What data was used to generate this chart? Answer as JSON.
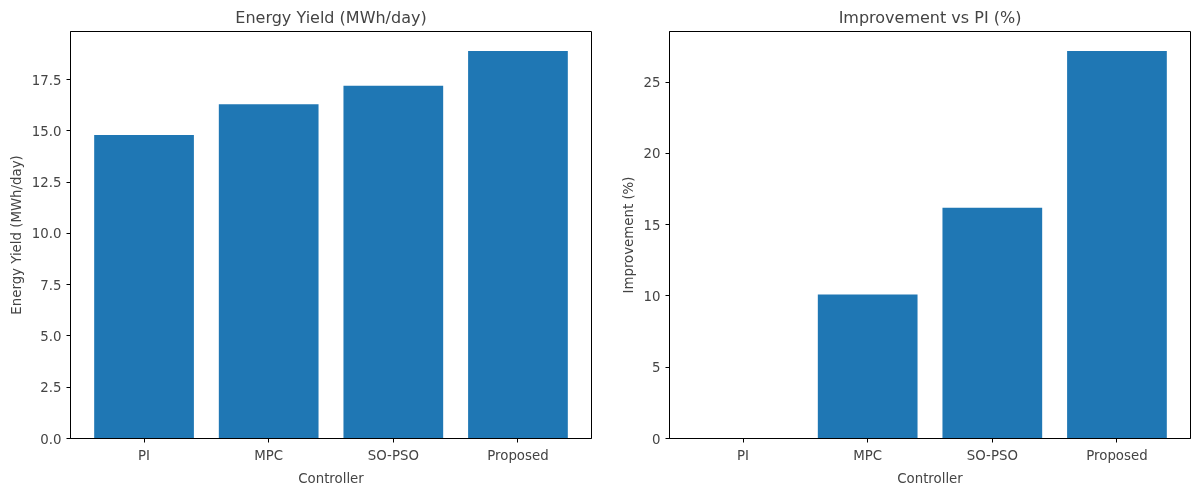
{
  "chart_data": [
    {
      "type": "bar",
      "title": "Energy Yield (MWh/day)",
      "xlabel": "Controller",
      "ylabel": "Energy Yield (MWh/day)",
      "categories": [
        "PI",
        "MPC",
        "SO-PSO",
        "Proposed"
      ],
      "values": [
        14.8,
        16.3,
        17.2,
        18.9
      ],
      "color": "#1f77b4",
      "ylim": [
        0,
        19.85
      ],
      "yticks": [
        {
          "value": 0,
          "label": "0.0"
        },
        2.5,
        {
          "value": 5,
          "label": "5.0"
        },
        7.5,
        {
          "value": 10,
          "label": "10.0"
        },
        12.5,
        {
          "value": 15,
          "label": "15.0"
        },
        17.5
      ],
      "grid": false
    },
    {
      "type": "bar",
      "title": "Improvement vs PI (%)",
      "xlabel": "Controller",
      "ylabel": "Improvement (%)",
      "categories": [
        "PI",
        "MPC",
        "SO-PSO",
        "Proposed"
      ],
      "values": [
        0,
        10.1,
        16.2,
        27.2
      ],
      "color": "#1f77b4",
      "ylim": [
        0,
        28.56
      ],
      "yticks": [
        0,
        5,
        10,
        15,
        20,
        25
      ],
      "grid": false
    }
  ]
}
